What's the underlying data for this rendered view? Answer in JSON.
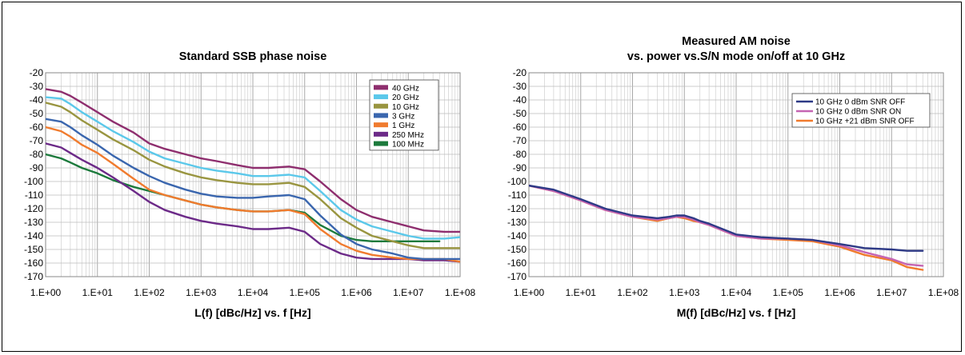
{
  "chart_data": [
    {
      "type": "line",
      "title": "Standard SSB phase noise",
      "subtitle": "",
      "xlabel": "L(f) [dBc/Hz] vs. f [Hz]",
      "ylabel": "",
      "xscale": "log",
      "xlim": [
        1,
        100000000
      ],
      "ylim": [
        -170,
        -20
      ],
      "x_ticks": [
        "1.E+00",
        "1.E+01",
        "1.E+02",
        "1.E+03",
        "1.E+04",
        "1.E+05",
        "1.E+06",
        "1.E+07",
        "1.E+08"
      ],
      "y_ticks": [
        "-20",
        "-30",
        "-40",
        "-50",
        "-60",
        "-70",
        "-80",
        "-90",
        "-100",
        "-110",
        "-120",
        "-130",
        "-140",
        "-150",
        "-160",
        "-170"
      ],
      "grid": true,
      "legend_position": "top-right",
      "series": [
        {
          "name": "40 GHz",
          "color": "#8e2e6e",
          "x": [
            1,
            2,
            3,
            5,
            10,
            20,
            50,
            100,
            200,
            500,
            1000,
            2000,
            5000,
            10000,
            20000,
            50000,
            100000,
            200000,
            500000,
            1000000,
            2000000,
            5000000,
            10000000,
            20000000,
            50000000,
            100000000
          ],
          "y": [
            -32,
            -34,
            -37,
            -42,
            -49,
            -56,
            -64,
            -72,
            -76,
            -80,
            -83,
            -85,
            -88,
            -90,
            -90,
            -89,
            -91,
            -100,
            -113,
            -121,
            -126,
            -130,
            -133,
            -136,
            -137,
            -137
          ]
        },
        {
          "name": "20 GHz",
          "color": "#5bc8ea",
          "x": [
            1,
            2,
            3,
            5,
            10,
            20,
            50,
            100,
            200,
            500,
            1000,
            2000,
            5000,
            10000,
            20000,
            50000,
            100000,
            200000,
            500000,
            1000000,
            2000000,
            5000000,
            10000000,
            20000000,
            50000000,
            100000000
          ],
          "y": [
            -38,
            -39,
            -43,
            -49,
            -56,
            -63,
            -71,
            -78,
            -83,
            -87,
            -90,
            -92,
            -94,
            -96,
            -96,
            -95,
            -97,
            -107,
            -121,
            -128,
            -133,
            -137,
            -140,
            -142,
            -142,
            -141
          ]
        },
        {
          "name": "10 GHz",
          "color": "#999540",
          "x": [
            1,
            2,
            3,
            5,
            10,
            20,
            50,
            100,
            200,
            500,
            1000,
            2000,
            5000,
            10000,
            20000,
            50000,
            100000,
            200000,
            500000,
            1000000,
            2000000,
            5000000,
            10000000,
            20000000,
            50000000,
            100000000
          ],
          "y": [
            -42,
            -45,
            -49,
            -55,
            -62,
            -69,
            -77,
            -84,
            -89,
            -94,
            -97,
            -99,
            -101,
            -102,
            -102,
            -101,
            -104,
            -113,
            -127,
            -134,
            -140,
            -144,
            -147,
            -149,
            -149,
            -149
          ]
        },
        {
          "name": "3 GHz",
          "color": "#3a66ae",
          "x": [
            1,
            2,
            3,
            5,
            10,
            20,
            50,
            100,
            200,
            500,
            1000,
            2000,
            5000,
            10000,
            20000,
            50000,
            100000,
            200000,
            500000,
            1000000,
            2000000,
            5000000,
            10000000,
            20000000,
            50000000,
            100000000
          ],
          "y": [
            -54,
            -56,
            -60,
            -66,
            -73,
            -81,
            -90,
            -96,
            -101,
            -106,
            -109,
            -111,
            -112,
            -112,
            -111,
            -110,
            -113,
            -125,
            -139,
            -146,
            -150,
            -153,
            -156,
            -157,
            -157,
            -157
          ]
        },
        {
          "name": "1 GHz",
          "color": "#f07b2e",
          "x": [
            1,
            2,
            3,
            5,
            10,
            20,
            50,
            100,
            200,
            500,
            1000,
            2000,
            5000,
            10000,
            20000,
            50000,
            100000,
            200000,
            500000,
            1000000,
            2000000,
            5000000,
            10000000,
            20000000,
            50000000,
            100000000
          ],
          "y": [
            -60,
            -63,
            -67,
            -73,
            -79,
            -87,
            -98,
            -106,
            -110,
            -114,
            -117,
            -119,
            -121,
            -122,
            -122,
            -121,
            -124,
            -135,
            -146,
            -151,
            -154,
            -156,
            -157,
            -157,
            -157,
            -159
          ]
        },
        {
          "name": "250 MHz",
          "color": "#6c2a88",
          "x": [
            1,
            2,
            3,
            5,
            10,
            20,
            50,
            100,
            200,
            500,
            1000,
            2000,
            5000,
            10000,
            20000,
            50000,
            100000,
            200000,
            500000,
            1000000,
            2000000,
            5000000,
            10000000,
            20000000,
            50000000,
            100000000
          ],
          "y": [
            -72,
            -75,
            -79,
            -84,
            -90,
            -97,
            -107,
            -115,
            -121,
            -126,
            -129,
            -131,
            -133,
            -135,
            -135,
            -134,
            -137,
            -146,
            -153,
            -156,
            -157,
            -157,
            -157,
            -158,
            -158,
            -159
          ]
        },
        {
          "name": "100 MHz",
          "color": "#1c7a3c",
          "x": [
            1,
            2,
            3,
            5,
            10,
            20,
            50,
            100,
            200,
            500,
            1000,
            2000,
            5000,
            10000,
            20000,
            50000,
            100000,
            200000,
            500000,
            1000000,
            2000000,
            5000000,
            10000000,
            20000000,
            40000000
          ],
          "y": [
            -80,
            -83,
            -86,
            -90,
            -94,
            -99,
            -104,
            -107,
            -110,
            -114,
            -117,
            -119,
            -121,
            -122,
            -122,
            -121,
            -123,
            -132,
            -140,
            -143,
            -144,
            -144,
            -144,
            -144,
            -144
          ]
        }
      ]
    },
    {
      "type": "line",
      "title": "Measured AM noise",
      "subtitle": "vs. power vs.S/N mode on/off at 10 GHz",
      "xlabel": "M(f) [dBc/Hz] vs. f [Hz]",
      "ylabel": "",
      "xscale": "log",
      "xlim": [
        1,
        100000000
      ],
      "ylim": [
        -170,
        -20
      ],
      "x_ticks": [
        "1.E+00",
        "1.E+01",
        "1.E+02",
        "1.E+03",
        "1.E+04",
        "1.E+05",
        "1.E+06",
        "1.E+07",
        "1.E+08"
      ],
      "y_ticks": [
        "-20",
        "-30",
        "-40",
        "-50",
        "-60",
        "-70",
        "-80",
        "-90",
        "-100",
        "-110",
        "-120",
        "-130",
        "-140",
        "-150",
        "-160",
        "-170"
      ],
      "grid": true,
      "legend_position": "top-right",
      "series": [
        {
          "name": "10 GHz 0 dBm SNR OFF",
          "color": "#2e3a86",
          "x": [
            1,
            3,
            10,
            30,
            100,
            300,
            500,
            700,
            1000,
            1500,
            2000,
            3000,
            10000,
            30000,
            100000,
            300000,
            1000000,
            3000000,
            10000000,
            20000000,
            40000000
          ],
          "y": [
            -103,
            -106,
            -113,
            -120,
            -125,
            -127,
            -126,
            -125,
            -125,
            -127,
            -129,
            -131,
            -139,
            -141,
            -142,
            -143,
            -146,
            -149,
            -150,
            -151,
            -151
          ]
        },
        {
          "name": "10 GHz 0 dBm SNR ON",
          "color": "#c564b2",
          "x": [
            1,
            3,
            10,
            30,
            100,
            300,
            500,
            700,
            1000,
            1500,
            2000,
            3000,
            10000,
            30000,
            100000,
            300000,
            1000000,
            3000000,
            10000000,
            20000000,
            40000000
          ],
          "y": [
            -103,
            -107,
            -114,
            -121,
            -126,
            -128,
            -127,
            -126,
            -126,
            -128,
            -130,
            -132,
            -140,
            -142,
            -142,
            -143,
            -147,
            -152,
            -157,
            -161,
            -162
          ]
        },
        {
          "name": "10 GHz +21 dBm SNR OFF",
          "color": "#f07b2e",
          "x": [
            1,
            3,
            10,
            30,
            100,
            300,
            500,
            700,
            1000,
            1500,
            2000,
            3000,
            10000,
            30000,
            100000,
            300000,
            1000000,
            3000000,
            10000000,
            20000000,
            40000000
          ],
          "y": [
            -103,
            -107,
            -114,
            -121,
            -126,
            -129,
            -127,
            -126,
            -127,
            -129,
            -130,
            -132,
            -140,
            -142,
            -143,
            -144,
            -148,
            -154,
            -158,
            -163,
            -165
          ]
        }
      ]
    }
  ]
}
